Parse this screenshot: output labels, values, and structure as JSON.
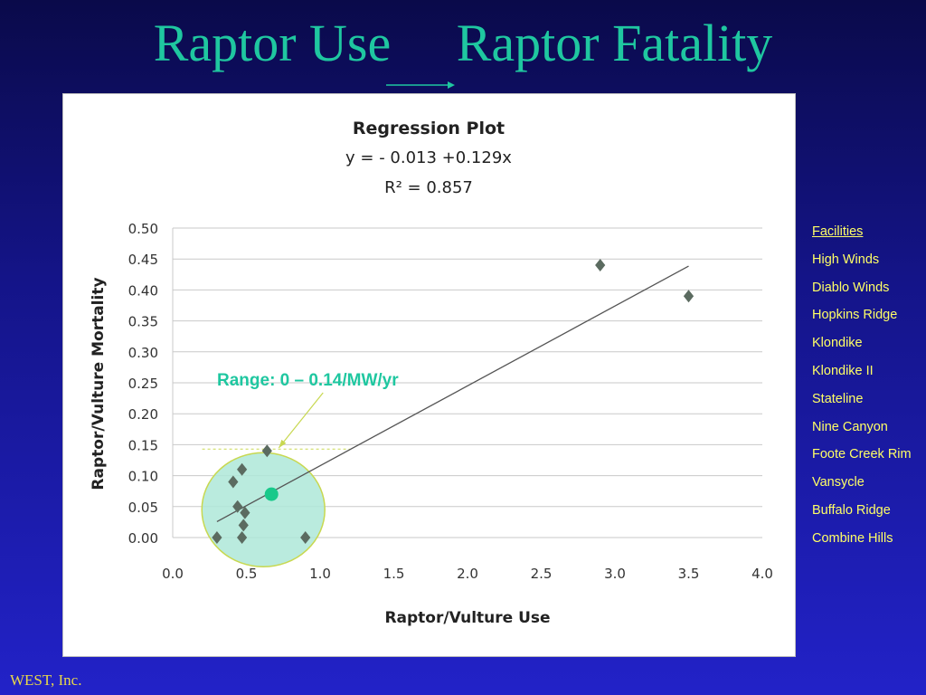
{
  "slide": {
    "title_left": "Raptor Use",
    "title_right": "Raptor Fatality",
    "footer": "WEST, Inc."
  },
  "legend": {
    "heading": "Facilities",
    "items": [
      "High Winds",
      "Diablo Winds",
      "Hopkins Ridge",
      "Klondike",
      "Klondike II",
      "Stateline",
      "Nine Canyon",
      "Foote Creek Rim",
      "Vansycle",
      "Buffalo Ridge",
      "Combine Hills"
    ]
  },
  "chart_data": {
    "type": "scatter",
    "title": "Regression Plot",
    "equation": "y = - 0.013 +0.129x",
    "r_squared": "R² = 0.857",
    "xlabel": "Raptor/Vulture Use",
    "ylabel": "Raptor/Vulture Mortality",
    "xlim": [
      0.0,
      4.0
    ],
    "ylim": [
      0.0,
      0.5
    ],
    "x_ticks": [
      "0.0",
      "0.5",
      "1.0",
      "1.5",
      "2.0",
      "2.5",
      "3.0",
      "3.5",
      "4.0"
    ],
    "y_ticks": [
      "0.00",
      "0.05",
      "0.10",
      "0.15",
      "0.20",
      "0.25",
      "0.30",
      "0.35",
      "0.40",
      "0.45",
      "0.50"
    ],
    "grid": true,
    "series": [
      {
        "marker": "diamond",
        "color": "#5b6b60",
        "points": [
          {
            "x": 0.3,
            "y": 0.0
          },
          {
            "x": 0.41,
            "y": 0.09
          },
          {
            "x": 0.44,
            "y": 0.05
          },
          {
            "x": 0.47,
            "y": 0.0
          },
          {
            "x": 0.47,
            "y": 0.11
          },
          {
            "x": 0.48,
            "y": 0.02
          },
          {
            "x": 0.49,
            "y": 0.04
          },
          {
            "x": 0.64,
            "y": 0.14
          },
          {
            "x": 0.9,
            "y": 0.0
          },
          {
            "x": 2.9,
            "y": 0.44
          },
          {
            "x": 3.5,
            "y": 0.39
          }
        ]
      }
    ],
    "trendline": {
      "intercept": -0.013,
      "slope": 0.129,
      "x_start": 0.3,
      "x_end": 3.5,
      "color": "#555555"
    },
    "highlight": {
      "label": "Range:  0 – 0.14/MW/yr",
      "label_color": "#1fc7a0",
      "center": {
        "x": 0.67,
        "y": 0.07
      },
      "range": [
        0,
        0.14
      ],
      "fill": "#aee8d8",
      "stroke": "#c8d850",
      "dot_color": "#18c98a"
    }
  }
}
